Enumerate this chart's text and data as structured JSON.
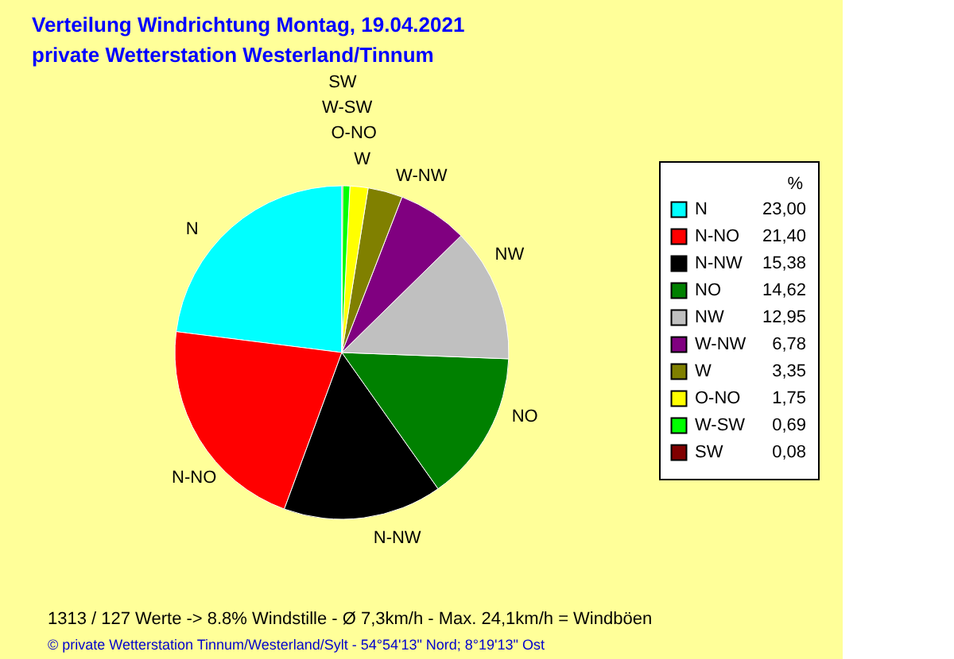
{
  "chart_data": {
    "type": "pie",
    "title": "Verteilung Windrichtung   Montag, 19.04.2021",
    "subtitle": "private Wetterstation Westerland/Tinnum",
    "legend_title": "%",
    "legend": "right",
    "categories": [
      "N",
      "N-NO",
      "N-NW",
      "NO",
      "NW",
      "W-NW",
      "W",
      "O-NO",
      "W-SW",
      "SW"
    ],
    "values": [
      23.0,
      21.4,
      15.38,
      14.62,
      12.95,
      6.78,
      3.35,
      1.75,
      0.69,
      0.08
    ],
    "value_labels": [
      "23,00",
      "21,40",
      "15,38",
      "14,62",
      "12,95",
      "6,78",
      "3,35",
      "1,75",
      "0,69",
      "0,08"
    ],
    "colors": [
      "#00ffff",
      "#ff0000",
      "#000000",
      "#008000",
      "#c0c0c0",
      "#800080",
      "#808000",
      "#ffff00",
      "#00ff00",
      "#800000"
    ],
    "annotations": [
      "1313 / 127 Werte  -> 8.8% Windstille   -   Ø 7,3km/h  -  Max. 24,1km/h = Windböen",
      "© private Wetterstation Tinnum/Westerland/Sylt  -  54°54'13\" Nord; 8°19'13\" Ost"
    ]
  }
}
